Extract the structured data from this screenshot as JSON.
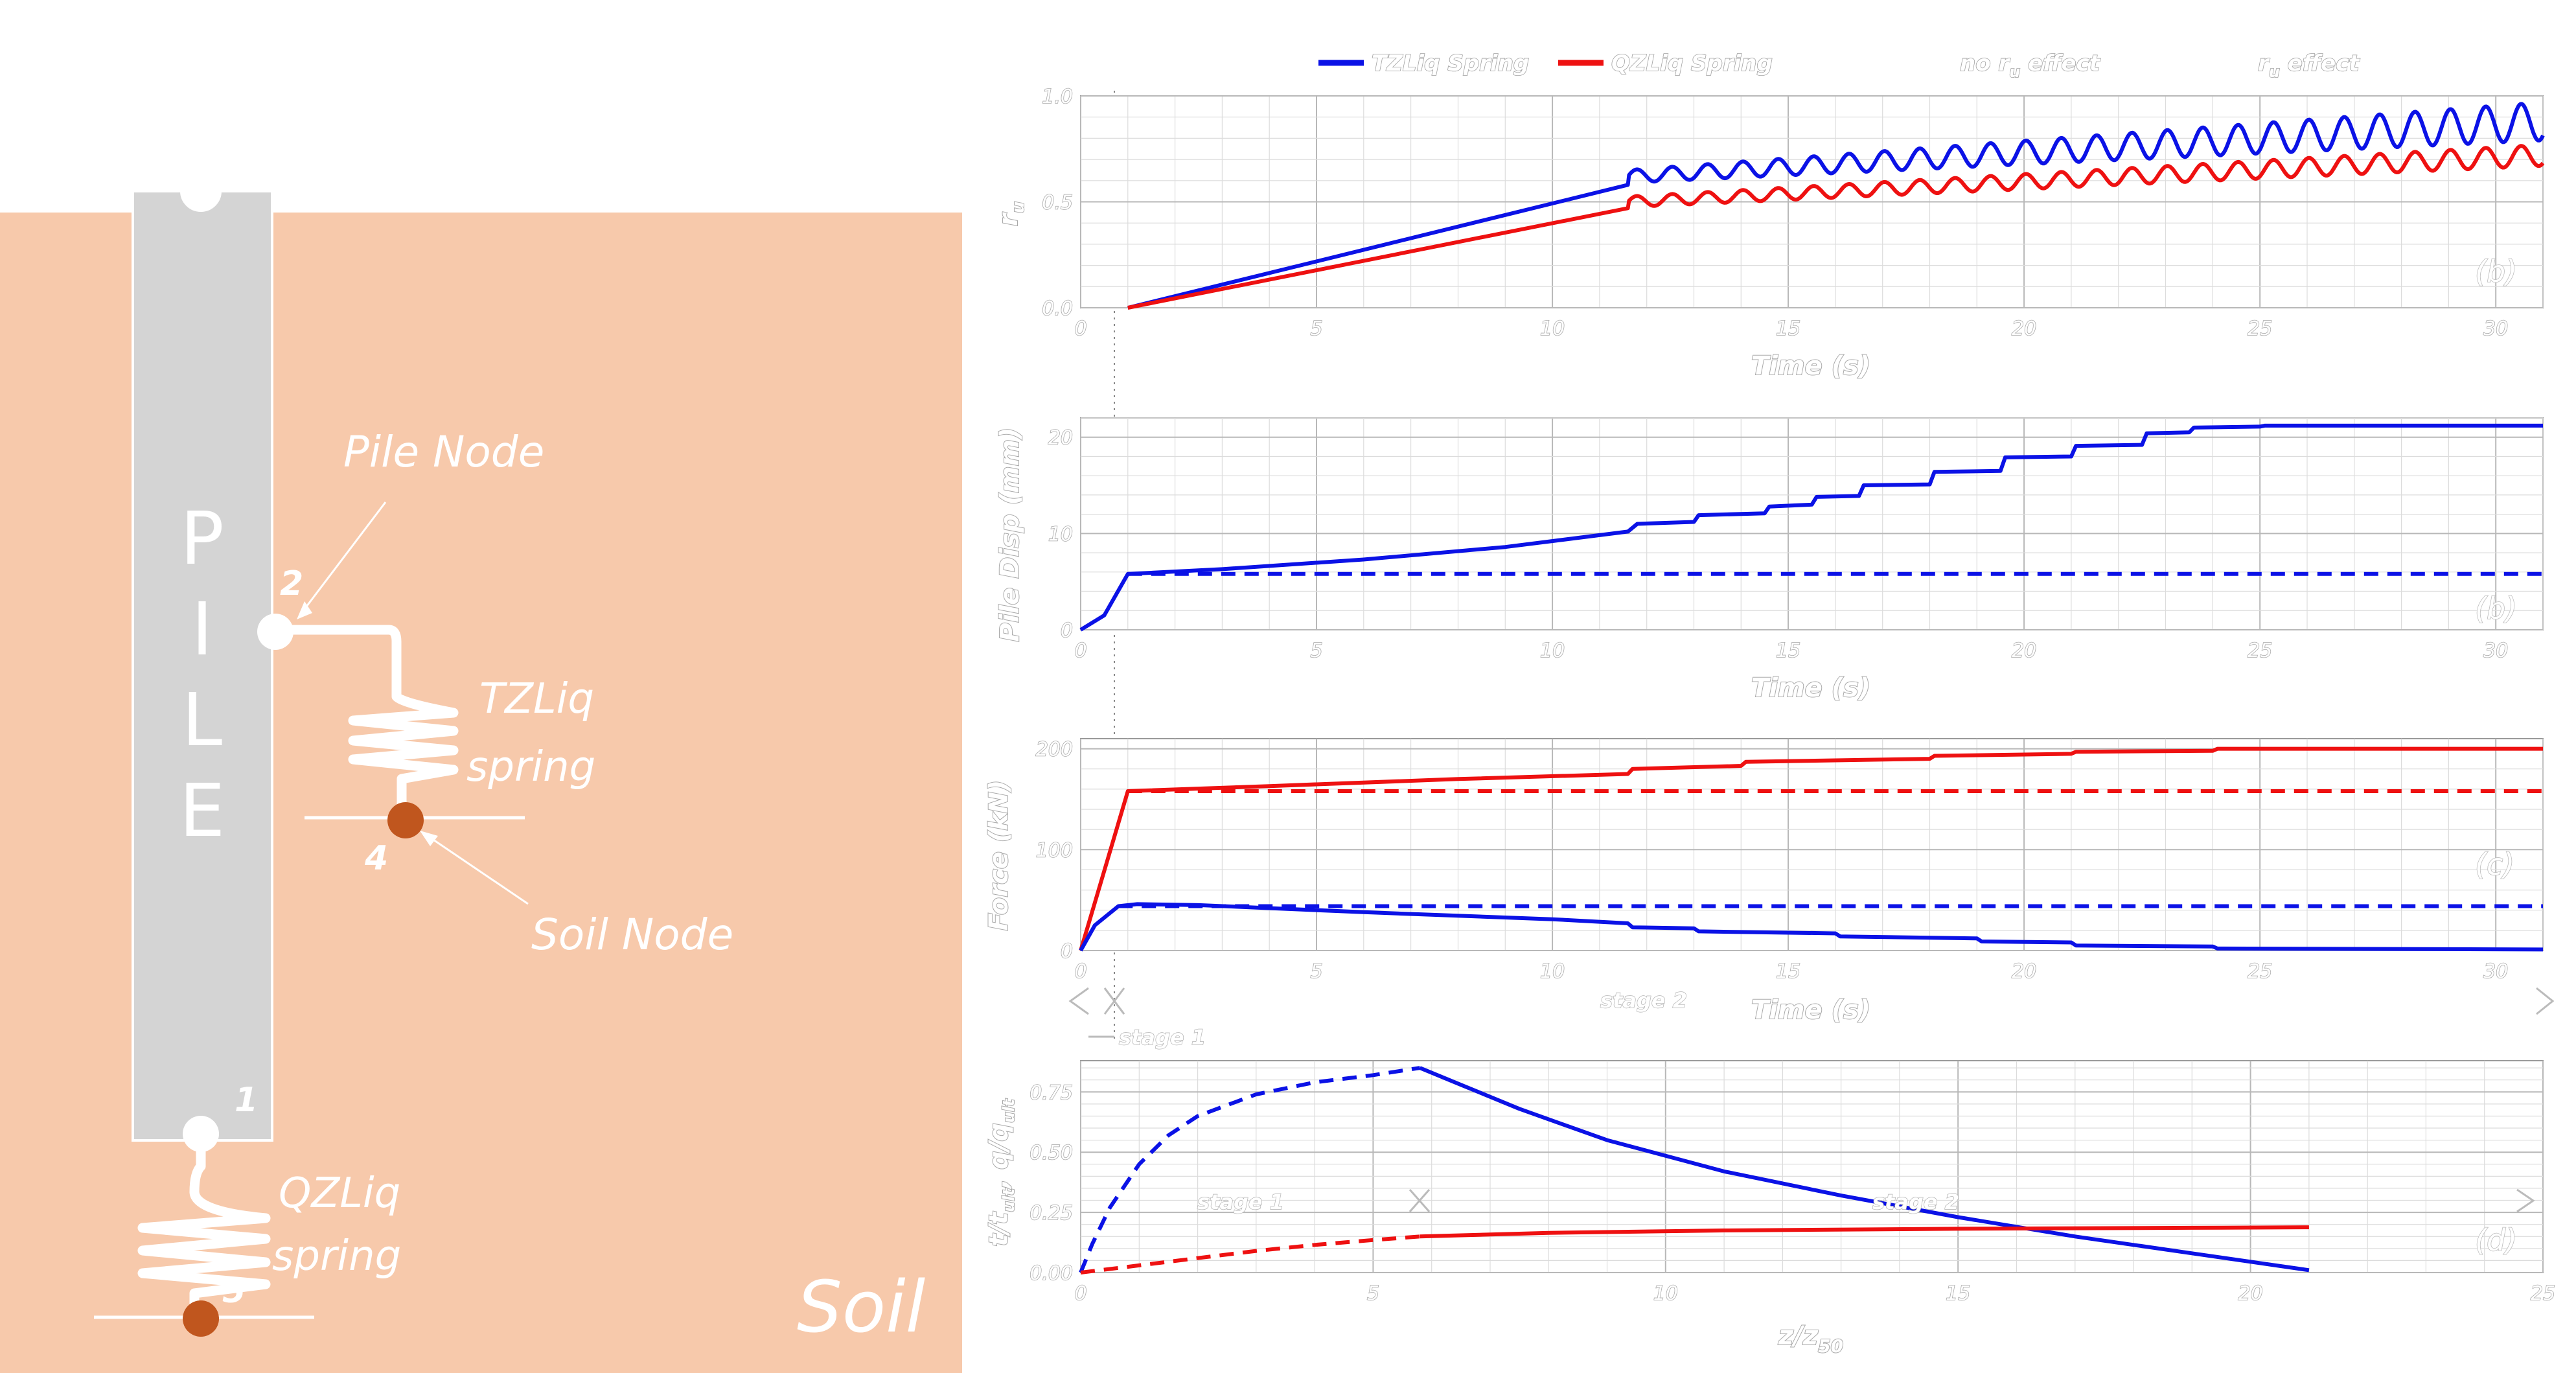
{
  "colors": {
    "soil": "#f7c9ab",
    "pile": "#d4d4d4",
    "soil_node": "#c0561e",
    "blue": "#0b12e6",
    "red": "#ee1111",
    "grid": "#c8c8c8"
  },
  "schematic": {
    "pile_letters": [
      "P",
      "I",
      "L",
      "E"
    ],
    "pile_node_label": "Pile Node",
    "soil_node_label": "Soil Node",
    "tz_label_1": "TZLiq",
    "tz_label_2": "spring",
    "qz_label_1": "QZLiq",
    "qz_label_2": "spring",
    "soil_label": "Soil",
    "node_numbers": {
      "n1": "1",
      "n2": "2",
      "n4": "4",
      "n5": "5"
    }
  },
  "legend": {
    "tz": "TZLiq Spring",
    "qz": "QZLiq Spring",
    "no_ru": "no r",
    "no_ru_sub": "u",
    "no_ru_tail": " effect",
    "ru": "r",
    "ru_sub": "u",
    "ru_tail": " effect"
  },
  "chart_data": [
    {
      "id": "a",
      "type": "line",
      "panel_tag": "(b)",
      "xlabel": "Time (s)",
      "ylabel": "r",
      "ylabel_sub": "u",
      "xlim": [
        0,
        31
      ],
      "ylim": [
        0,
        1.0
      ],
      "xticks": [
        0,
        5,
        10,
        15,
        20,
        25,
        30
      ],
      "yticks": [
        0.0,
        0.5,
        1.0
      ],
      "ytick_labels": [
        "0.0",
        "0.5",
        "1.0"
      ],
      "series": [
        {
          "color": "blue",
          "style": "solid",
          "ramp": [
            [
              1,
              0
            ],
            [
              11.6,
              0.58
            ]
          ],
          "cyc_start": 11.6,
          "cyc_end": 31,
          "period": 0.75,
          "base_from": 0.62,
          "base_to": 0.88,
          "amp_from": 0.03,
          "amp_to": 0.09
        },
        {
          "color": "red",
          "style": "solid",
          "ramp": [
            [
              1,
              0
            ],
            [
              11.6,
              0.47
            ]
          ],
          "cyc_start": 11.6,
          "cyc_end": 31,
          "period": 0.75,
          "base_from": 0.5,
          "base_to": 0.72,
          "amp_from": 0.025,
          "amp_to": 0.05
        }
      ]
    },
    {
      "id": "b",
      "type": "line",
      "panel_tag": "(b)",
      "xlabel": "Time (s)",
      "ylabel": "Pile Disp (mm)",
      "xlim": [
        0,
        31
      ],
      "ylim": [
        0,
        22
      ],
      "xticks": [
        0,
        5,
        10,
        15,
        20,
        25,
        30
      ],
      "yticks": [
        0,
        10,
        20
      ],
      "ytick_labels": [
        "0",
        "10",
        "20"
      ],
      "series": [
        {
          "color": "blue",
          "style": "solid",
          "points": [
            [
              0,
              0
            ],
            [
              0.5,
              1.5
            ],
            [
              1.0,
              5.8
            ],
            [
              3,
              6.3
            ],
            [
              6,
              7.3
            ],
            [
              9,
              8.6
            ],
            [
              11.6,
              10.2
            ],
            [
              11.8,
              11.0
            ],
            [
              13,
              11.2
            ],
            [
              13.1,
              11.9
            ],
            [
              14.5,
              12.1
            ],
            [
              14.6,
              12.8
            ],
            [
              15.5,
              13.0
            ],
            [
              15.6,
              13.8
            ],
            [
              16.5,
              13.9
            ],
            [
              16.6,
              15.0
            ],
            [
              18,
              15.1
            ],
            [
              18.1,
              16.4
            ],
            [
              19.5,
              16.5
            ],
            [
              19.6,
              17.9
            ],
            [
              21,
              18.0
            ],
            [
              21.1,
              19.1
            ],
            [
              22.5,
              19.2
            ],
            [
              22.6,
              20.4
            ],
            [
              23.5,
              20.5
            ],
            [
              23.6,
              21.0
            ],
            [
              25,
              21.1
            ],
            [
              25.1,
              21.2
            ],
            [
              31,
              21.2
            ]
          ]
        },
        {
          "color": "blue",
          "style": "dashed",
          "points": [
            [
              1.0,
              5.8
            ],
            [
              31,
              5.8
            ]
          ]
        }
      ]
    },
    {
      "id": "c",
      "type": "line",
      "panel_tag": "(c)",
      "xlabel": "Time (s)",
      "ylabel": "Force (kN)",
      "xlim": [
        0,
        31
      ],
      "ylim": [
        0,
        210
      ],
      "xticks": [
        0,
        5,
        10,
        15,
        20,
        25,
        30
      ],
      "yticks": [
        0,
        100,
        200
      ],
      "ytick_labels": [
        "0",
        "100",
        "200"
      ],
      "series": [
        {
          "color": "red",
          "style": "solid",
          "points": [
            [
              0,
              0
            ],
            [
              1.0,
              158
            ],
            [
              4,
              163
            ],
            [
              8,
              170
            ],
            [
              11.6,
              175
            ],
            [
              11.7,
              180
            ],
            [
              14,
              183
            ],
            [
              14.1,
              187
            ],
            [
              18,
              190
            ],
            [
              18.1,
              193
            ],
            [
              21,
              195
            ],
            [
              21.1,
              197
            ],
            [
              24,
              198
            ],
            [
              24.1,
              200
            ],
            [
              31,
              200
            ]
          ]
        },
        {
          "color": "red",
          "style": "dashed",
          "points": [
            [
              1.0,
              158
            ],
            [
              31,
              158
            ]
          ]
        },
        {
          "color": "blue",
          "style": "solid",
          "points": [
            [
              0,
              0
            ],
            [
              0.3,
              25
            ],
            [
              0.8,
              44
            ],
            [
              1.2,
              46
            ],
            [
              2.5,
              45
            ],
            [
              6,
              38
            ],
            [
              10,
              31
            ],
            [
              11.6,
              27
            ],
            [
              11.7,
              23
            ],
            [
              13,
              22
            ],
            [
              13.1,
              19
            ],
            [
              16,
              17
            ],
            [
              16.1,
              14
            ],
            [
              19,
              12
            ],
            [
              19.1,
              9
            ],
            [
              21,
              8
            ],
            [
              21.1,
              5
            ],
            [
              24,
              4
            ],
            [
              24.1,
              2
            ],
            [
              31,
              1
            ]
          ]
        },
        {
          "color": "blue",
          "style": "dashed",
          "points": [
            [
              0.8,
              44
            ],
            [
              31,
              44
            ]
          ]
        }
      ],
      "annotations": {
        "stage1": "stage 1",
        "stage2": "stage 2"
      }
    },
    {
      "id": "d",
      "type": "line",
      "panel_tag": "(d)",
      "xlabel": "z/z",
      "xlabel_sub": "50",
      "ylabel": "t/t",
      "ylabel_sub": "ult",
      "ylabel_tail": ",  q/q",
      "ylabel_sub2": "ult",
      "xlim": [
        0,
        25
      ],
      "ylim": [
        0,
        0.88
      ],
      "xticks": [
        0,
        5,
        10,
        15,
        20,
        25
      ],
      "yticks": [
        0.0,
        0.25,
        0.5,
        0.75
      ],
      "ytick_labels": [
        "0.00",
        "0.25",
        "0.50",
        "0.75"
      ],
      "series": [
        {
          "color": "blue",
          "style": "dashed",
          "points": [
            [
              0,
              0
            ],
            [
              0.2,
              0.12
            ],
            [
              0.5,
              0.27
            ],
            [
              1,
              0.45
            ],
            [
              1.5,
              0.57
            ],
            [
              2,
              0.65
            ],
            [
              3,
              0.74
            ],
            [
              4,
              0.79
            ],
            [
              5,
              0.82
            ],
            [
              5.8,
              0.85
            ]
          ]
        },
        {
          "color": "blue",
          "style": "solid",
          "points": [
            [
              5.8,
              0.85
            ],
            [
              6.5,
              0.78
            ],
            [
              7.5,
              0.68
            ],
            [
              9,
              0.55
            ],
            [
              11,
              0.42
            ],
            [
              13,
              0.32
            ],
            [
              15,
              0.23
            ],
            [
              17,
              0.15
            ],
            [
              19,
              0.08
            ],
            [
              21,
              0.01
            ]
          ]
        },
        {
          "color": "red",
          "style": "dashed",
          "points": [
            [
              0,
              0
            ],
            [
              1,
              0.03
            ],
            [
              2,
              0.06
            ],
            [
              3,
              0.09
            ],
            [
              4,
              0.115
            ],
            [
              5,
              0.135
            ],
            [
              5.8,
              0.15
            ]
          ]
        },
        {
          "color": "red",
          "style": "solid",
          "points": [
            [
              5.8,
              0.15
            ],
            [
              8,
              0.165
            ],
            [
              11,
              0.175
            ],
            [
              15,
              0.182
            ],
            [
              19,
              0.186
            ],
            [
              21,
              0.188
            ]
          ]
        }
      ],
      "annotations": {
        "stage1": "stage 1",
        "stage2": "stage 2"
      }
    }
  ]
}
